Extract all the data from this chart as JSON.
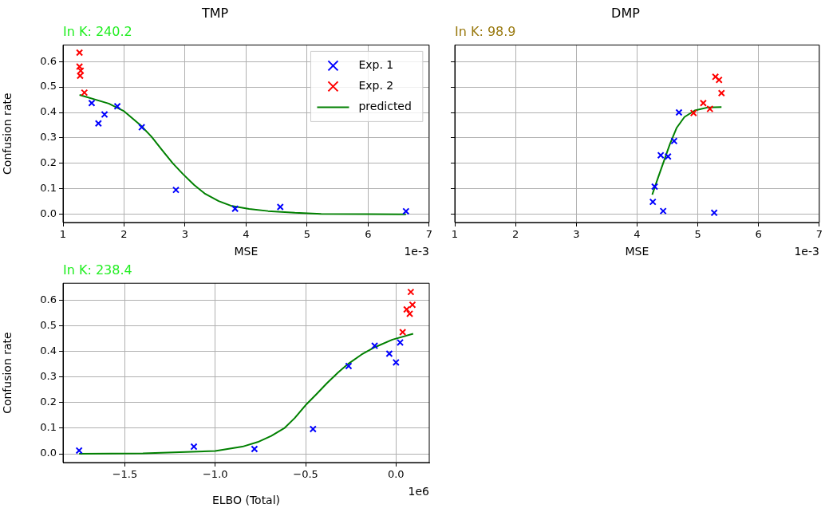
{
  "chart_data": [
    {
      "type": "scatter",
      "title": "TMP",
      "subtitle": "In K: 240.2",
      "xlabel": "MSE",
      "ylabel": "Confusion rate",
      "annotations": [
        "1e-3"
      ],
      "xlim": [
        1,
        7
      ],
      "xticks": [
        1,
        2,
        3,
        4,
        5,
        6,
        7
      ],
      "ylim": [
        -0.032,
        0.665
      ],
      "yticks": [
        {
          "value": 0,
          "label": "0.0"
        },
        {
          "value": 0.1,
          "label": "0.1"
        },
        {
          "value": 0.2,
          "label": "0.2"
        },
        {
          "value": 0.3,
          "label": "0.3"
        },
        {
          "value": 0.4,
          "label": "0.4"
        },
        {
          "value": 0.5,
          "label": "0.5"
        },
        {
          "value": 0.6,
          "label": "0.6"
        }
      ],
      "grid": true,
      "legend": "top right",
      "series": [
        {
          "name": "Exp. 1",
          "color": "#0000ff",
          "marker": "cross",
          "x": [
            1.47,
            1.58,
            1.68,
            1.89,
            2.29,
            2.85,
            3.82,
            4.56,
            6.62
          ],
          "values": [
            0.437,
            0.357,
            0.392,
            0.424,
            0.342,
            0.096,
            0.022,
            0.029,
            0.012
          ]
        },
        {
          "name": "Exp. 2",
          "color": "#ff0000",
          "marker": "cross",
          "x": [
            1.27,
            1.27,
            1.29,
            1.28,
            1.35
          ],
          "values": [
            0.635,
            0.58,
            0.564,
            0.544,
            0.478
          ]
        },
        {
          "name": "predicted",
          "type": "line",
          "color": "#008000",
          "marker": "none",
          "x": [
            1.27,
            1.75,
            2.0,
            2.27,
            2.45,
            2.62,
            2.8,
            2.97,
            3.15,
            3.32,
            3.55,
            3.75,
            4.05,
            4.36,
            4.8,
            5.23,
            6.0,
            6.62
          ],
          "values": [
            0.469,
            0.435,
            0.405,
            0.35,
            0.305,
            0.253,
            0.2,
            0.157,
            0.115,
            0.082,
            0.052,
            0.034,
            0.021,
            0.013,
            0.006,
            0.002,
            0.001,
            0
          ]
        }
      ]
    },
    {
      "type": "scatter",
      "title": "DMP",
      "subtitle": "In K: 98.9",
      "xlabel": "MSE",
      "annotations": [
        "1e-3"
      ],
      "xlim": [
        1,
        7
      ],
      "xticks": [
        1,
        2,
        3,
        4,
        5,
        6,
        7
      ],
      "ylim": [
        -0.032,
        0.665
      ],
      "yticks": [
        {
          "value": 0,
          "label": null
        },
        {
          "value": 0.1,
          "label": null
        },
        {
          "value": 0.2,
          "label": null
        },
        {
          "value": 0.3,
          "label": null
        },
        {
          "value": 0.4,
          "label": null
        },
        {
          "value": 0.5,
          "label": null
        },
        {
          "value": 0.6,
          "label": null
        }
      ],
      "tick_labels": "x",
      "grid": true,
      "series": [
        {
          "color": "#0000ff",
          "marker": "cross",
          "x": [
            4.69,
            4.61,
            4.39,
            4.51,
            4.29,
            4.26,
            4.43,
            5.27
          ],
          "values": [
            0.4,
            0.288,
            0.232,
            0.227,
            0.109,
            0.049,
            0.013,
            0.006
          ]
        },
        {
          "color": "#ff0000",
          "marker": "cross",
          "x": [
            4.93,
            5.09,
            5.2,
            5.29,
            5.35,
            5.39
          ],
          "values": [
            0.398,
            0.437,
            0.414,
            0.54,
            0.528,
            0.476
          ]
        },
        {
          "type": "line",
          "color": "#008000",
          "marker": "none",
          "x": [
            4.25,
            4.35,
            4.46,
            4.54,
            4.65,
            4.78,
            4.95,
            5.17,
            5.39
          ],
          "values": [
            0.077,
            0.147,
            0.221,
            0.275,
            0.339,
            0.382,
            0.408,
            0.42,
            0.421
          ]
        }
      ]
    },
    {
      "type": "scatter",
      "subtitle": "In K: 238.4",
      "xlabel": "ELBO (Total)",
      "ylabel": "Confusion rate",
      "annotations": [
        "1e6"
      ],
      "xlim": [
        -1.842,
        0.184
      ],
      "xticks": [
        {
          "value": -1.5,
          "label": "−1.5"
        },
        {
          "value": -1.0,
          "label": "−1.0"
        },
        {
          "value": -0.5,
          "label": "−0.5"
        },
        {
          "value": 0,
          "label": "0.0"
        }
      ],
      "ylim": [
        -0.034,
        0.666
      ],
      "yticks": [
        {
          "value": 0,
          "label": "0.0"
        },
        {
          "value": 0.1,
          "label": "0.1"
        },
        {
          "value": 0.2,
          "label": "0.2"
        },
        {
          "value": 0.3,
          "label": "0.3"
        },
        {
          "value": 0.4,
          "label": "0.4"
        },
        {
          "value": 0.5,
          "label": "0.5"
        },
        {
          "value": 0.6,
          "label": "0.6"
        }
      ],
      "grid": true,
      "series": [
        {
          "color": "#0000ff",
          "marker": "cross",
          "x": [
            -1.753,
            -1.118,
            -0.783,
            -0.459,
            -0.262,
            -0.118,
            -0.037,
            0.0,
            0.023
          ],
          "values": [
            0.013,
            0.028,
            0.019,
            0.097,
            0.343,
            0.422,
            0.391,
            0.357,
            0.435
          ]
        },
        {
          "color": "#ff0000",
          "marker": "cross",
          "x": [
            0.037,
            0.082,
            0.091,
            0.059,
            0.076
          ],
          "values": [
            0.475,
            0.632,
            0.582,
            0.564,
            0.547
          ]
        },
        {
          "type": "line",
          "color": "#008000",
          "marker": "none",
          "x": [
            -1.753,
            -1.4,
            -1.0,
            -0.85,
            -0.765,
            -0.69,
            -0.618,
            -0.56,
            -0.5,
            -0.44,
            -0.382,
            -0.32,
            -0.265,
            -0.19,
            -0.118,
            -0.02,
            0.095
          ],
          "values": [
            0,
            0.002,
            0.011,
            0.028,
            0.046,
            0.07,
            0.1,
            0.14,
            0.19,
            0.233,
            0.276,
            0.318,
            0.351,
            0.388,
            0.416,
            0.446,
            0.469
          ]
        }
      ]
    }
  ]
}
